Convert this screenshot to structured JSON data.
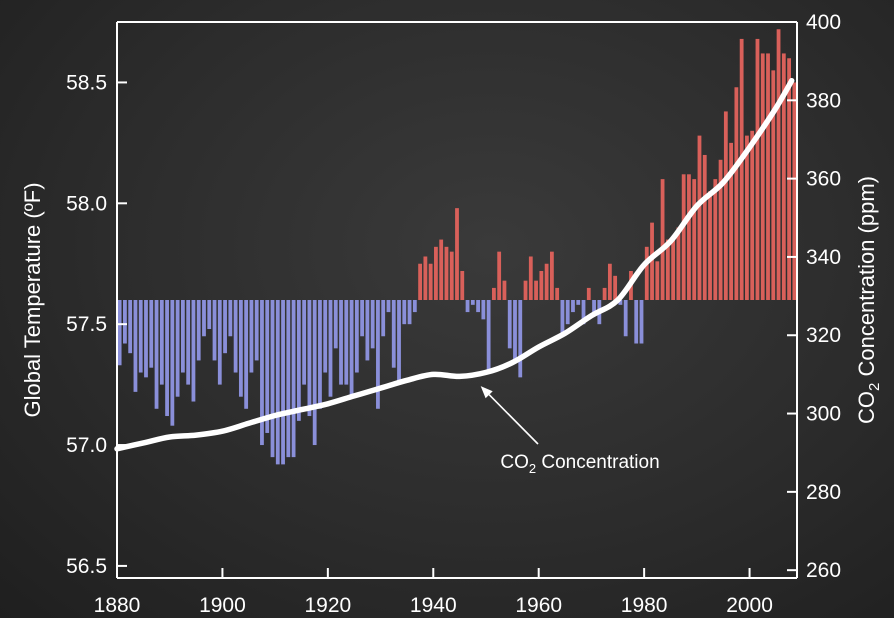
{
  "chart_data": {
    "type": "bar",
    "title": "",
    "xlabel": "",
    "ylabel": "Global Temperature (ºF)",
    "ylabel_right": {
      "prefix": "CO",
      "sub": "2",
      "suffix": " Concentration (ppm)"
    },
    "xlim": [
      1880,
      2009
    ],
    "ylim": [
      56.45,
      58.75
    ],
    "ylim_right": [
      258,
      400
    ],
    "baseline": 57.6,
    "grid": false,
    "legend": "none",
    "x_ticks": [
      1880,
      1900,
      1920,
      1940,
      1960,
      1980,
      2000
    ],
    "y_ticks": [
      56.5,
      57.0,
      57.5,
      58.0,
      58.5
    ],
    "y_tick_labels": [
      "56.5",
      "57.0",
      "57.5",
      "58.0",
      "58.5"
    ],
    "y_right_ticks": [
      260,
      280,
      300,
      320,
      340,
      360,
      380,
      400
    ],
    "colors": {
      "above": "#d9605a",
      "below": "#8a8fd9",
      "line": "#ffffff",
      "axis": "#ffffff"
    },
    "series": [
      {
        "name": "Global Temperature",
        "type": "bar",
        "axis": "left",
        "x": [
          1880,
          1881,
          1882,
          1883,
          1884,
          1885,
          1886,
          1887,
          1888,
          1889,
          1890,
          1891,
          1892,
          1893,
          1894,
          1895,
          1896,
          1897,
          1898,
          1899,
          1900,
          1901,
          1902,
          1903,
          1904,
          1905,
          1906,
          1907,
          1908,
          1909,
          1910,
          1911,
          1912,
          1913,
          1914,
          1915,
          1916,
          1917,
          1918,
          1919,
          1920,
          1921,
          1922,
          1923,
          1924,
          1925,
          1926,
          1927,
          1928,
          1929,
          1930,
          1931,
          1932,
          1933,
          1934,
          1935,
          1936,
          1937,
          1938,
          1939,
          1940,
          1941,
          1942,
          1943,
          1944,
          1945,
          1946,
          1947,
          1948,
          1949,
          1950,
          1951,
          1952,
          1953,
          1954,
          1955,
          1956,
          1957,
          1958,
          1959,
          1960,
          1961,
          1962,
          1963,
          1964,
          1965,
          1966,
          1967,
          1968,
          1969,
          1970,
          1971,
          1972,
          1973,
          1974,
          1975,
          1976,
          1977,
          1978,
          1979,
          1980,
          1981,
          1982,
          1983,
          1984,
          1985,
          1986,
          1987,
          1988,
          1989,
          1990,
          1991,
          1992,
          1993,
          1994,
          1995,
          1996,
          1997,
          1998,
          1999,
          2000,
          2001,
          2002,
          2003,
          2004,
          2005,
          2006,
          2007,
          2008
        ],
        "values": [
          57.33,
          57.42,
          57.38,
          57.22,
          57.3,
          57.28,
          57.32,
          57.15,
          57.25,
          57.12,
          57.08,
          57.2,
          57.3,
          57.25,
          57.18,
          57.35,
          57.45,
          57.48,
          57.35,
          57.25,
          57.38,
          57.45,
          57.3,
          57.2,
          57.15,
          57.3,
          57.35,
          57.0,
          57.05,
          56.95,
          56.92,
          56.92,
          56.95,
          56.95,
          57.1,
          57.25,
          57.12,
          57.0,
          57.15,
          57.3,
          57.2,
          57.4,
          57.25,
          57.25,
          57.2,
          57.3,
          57.45,
          57.35,
          57.4,
          57.15,
          57.45,
          57.55,
          57.32,
          57.25,
          57.5,
          57.5,
          57.55,
          57.75,
          57.78,
          57.75,
          57.82,
          57.85,
          57.82,
          57.8,
          57.98,
          57.72,
          57.55,
          57.58,
          57.55,
          57.52,
          57.3,
          57.65,
          57.8,
          57.68,
          57.4,
          57.35,
          57.28,
          57.68,
          57.78,
          57.68,
          57.72,
          57.75,
          57.8,
          57.65,
          57.45,
          57.5,
          57.55,
          57.58,
          57.5,
          57.65,
          57.55,
          57.5,
          57.65,
          57.75,
          57.7,
          57.58,
          57.45,
          57.72,
          57.42,
          57.42,
          57.82,
          57.92,
          57.76,
          58.1,
          57.85,
          57.85,
          57.9,
          58.12,
          58.12,
          58.1,
          58.28,
          58.2,
          58.05,
          58.1,
          58.18,
          58.38,
          58.25,
          58.48,
          58.68,
          58.28,
          58.3,
          58.68,
          58.62,
          58.62,
          58.55,
          58.72,
          58.62,
          58.6,
          58.5
        ]
      },
      {
        "name": "CO2 Concentration",
        "type": "line",
        "axis": "right",
        "x": [
          1880,
          1885,
          1890,
          1895,
          1900,
          1905,
          1910,
          1915,
          1920,
          1925,
          1930,
          1935,
          1940,
          1945,
          1950,
          1955,
          1960,
          1965,
          1970,
          1975,
          1980,
          1985,
          1990,
          1995,
          2000,
          2005,
          2008
        ],
        "values": [
          291,
          292.5,
          294,
          294.5,
          295.5,
          297.5,
          299.5,
          301,
          302.5,
          304.5,
          306.5,
          308.5,
          310,
          309.5,
          310.5,
          313,
          317,
          320.5,
          325,
          329,
          338,
          344,
          353,
          359,
          368,
          378,
          385
        ]
      }
    ],
    "annotations": [
      {
        "text_main": "CO",
        "text_sub": "2",
        "text_rest": " Concentration",
        "target_x": 1949,
        "target_value": 307
      }
    ]
  }
}
